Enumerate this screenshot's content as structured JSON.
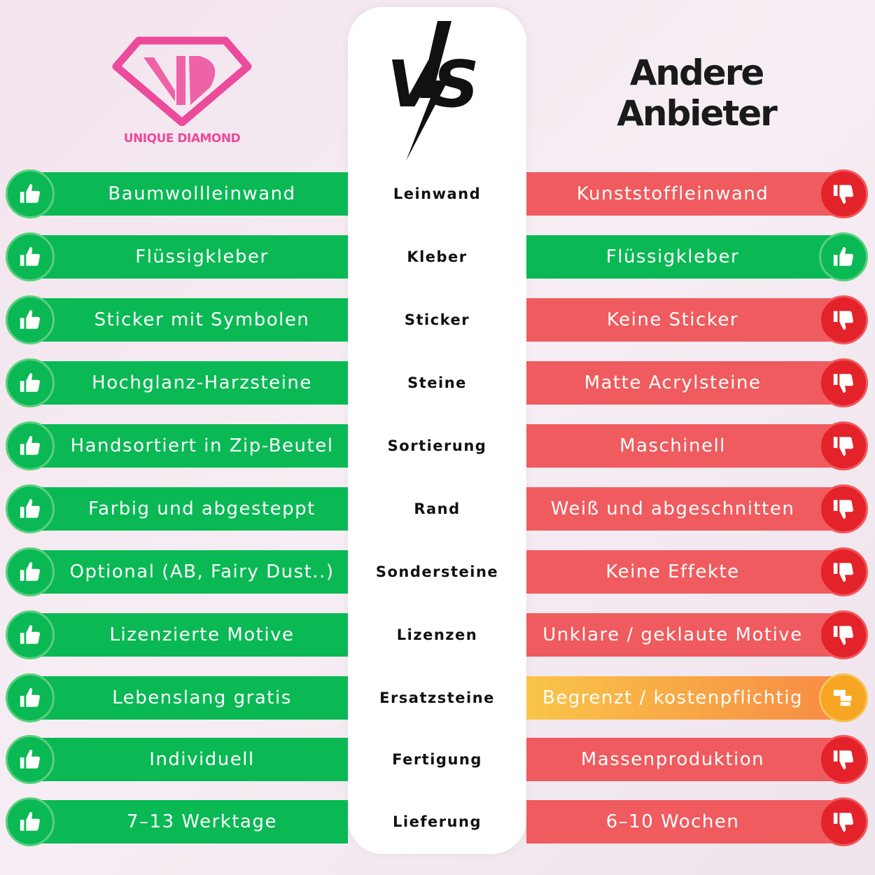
{
  "brand": {
    "name": "UNIQUE DIAMOND",
    "logo_initials": "UD",
    "color": "#ec4a9a"
  },
  "vs_label": "VS",
  "competitor_title": [
    "Andere",
    "Anbieter"
  ],
  "colors": {
    "good": "#0ab954",
    "bad": "#ef5b5e",
    "neutral": "#f6a623"
  },
  "rows": [
    {
      "category": "Leinwand",
      "ours": "Baumwollleinwand",
      "theirs": "Kunststoffleinwand",
      "theirs_rating": "bad"
    },
    {
      "category": "Kleber",
      "ours": "Flüssigkleber",
      "theirs": "Flüssigkleber",
      "theirs_rating": "good"
    },
    {
      "category": "Sticker",
      "ours": "Sticker mit Symbolen",
      "theirs": "Keine Sticker",
      "theirs_rating": "bad"
    },
    {
      "category": "Steine",
      "ours": "Hochglanz-Harzsteine",
      "theirs": "Matte Acrylsteine",
      "theirs_rating": "bad"
    },
    {
      "category": "Sortierung",
      "ours": "Handsortiert in Zip-Beutel",
      "theirs": "Maschinell",
      "theirs_rating": "bad"
    },
    {
      "category": "Rand",
      "ours": "Farbig und abgesteppt",
      "theirs": "Weiß und abgeschnitten",
      "theirs_rating": "bad"
    },
    {
      "category": "Sondersteine",
      "ours": "Optional (AB, Fairy Dust..)",
      "theirs": "Keine Effekte",
      "theirs_rating": "bad"
    },
    {
      "category": "Lizenzen",
      "ours": "Lizenzierte Motive",
      "theirs": "Unklare / geklaute Motive",
      "theirs_rating": "bad"
    },
    {
      "category": "Ersatzsteine",
      "ours": "Lebenslang gratis",
      "theirs": "Begrenzt / kostenpflichtig",
      "theirs_rating": "mid"
    },
    {
      "category": "Fertigung",
      "ours": "Individuell",
      "theirs": "Massenproduktion",
      "theirs_rating": "bad"
    },
    {
      "category": "Lieferung",
      "ours": "7–13 Werktage",
      "theirs": "6–10 Wochen",
      "theirs_rating": "bad"
    }
  ]
}
